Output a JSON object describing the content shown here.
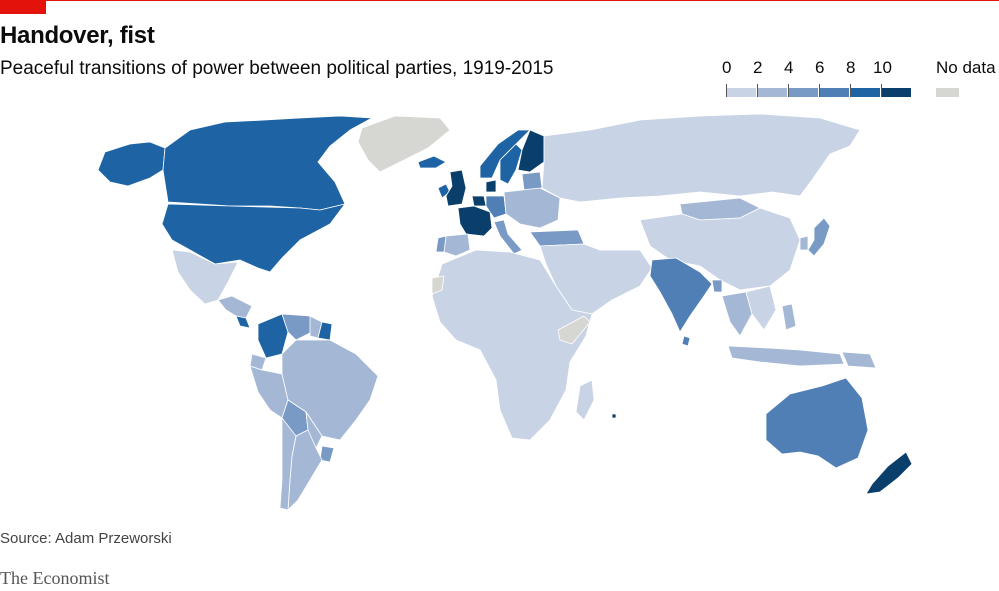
{
  "header": {
    "title": "Handover, fist",
    "subtitle": "Peaceful transitions of power between political parties, 1919-2015"
  },
  "legend": {
    "ticks": [
      "0",
      "2",
      "4",
      "6",
      "8",
      "10"
    ],
    "no_data_label": "No data"
  },
  "footer": {
    "source": "Source: Adam Przeworski",
    "brand": "The Economist"
  },
  "colors": {
    "accent": "#e3120b",
    "scale": [
      "#c9d3e6",
      "#a4b8d6",
      "#7a9ac6",
      "#4f7fb4",
      "#1e64a5",
      "#0b3f6b"
    ],
    "no_data": "#d6d7d3",
    "border": "#ffffff"
  },
  "map_data": {
    "metric": "Peaceful transitions of power between political parties",
    "bins": [
      {
        "label": "0-2",
        "color_index": 0
      },
      {
        "label": "2-4",
        "color_index": 1
      },
      {
        "label": "4-6",
        "color_index": 2
      },
      {
        "label": "6-8",
        "color_index": 3
      },
      {
        "label": "8-10",
        "color_index": 4
      },
      {
        "label": "10+",
        "color_index": 5
      }
    ],
    "regions": [
      {
        "name": "Canada",
        "bin": 4
      },
      {
        "name": "United States",
        "bin": 4
      },
      {
        "name": "Alaska",
        "bin": 4
      },
      {
        "name": "Greenland",
        "bin": "no_data"
      },
      {
        "name": "Iceland",
        "bin": 4
      },
      {
        "name": "Mexico",
        "bin": 0
      },
      {
        "name": "Central America",
        "bin": 1
      },
      {
        "name": "Costa Rica",
        "bin": 4
      },
      {
        "name": "Colombia",
        "bin": 4
      },
      {
        "name": "Venezuela",
        "bin": 2
      },
      {
        "name": "Guyana",
        "bin": 1
      },
      {
        "name": "Suriname",
        "bin": 4
      },
      {
        "name": "Ecuador",
        "bin": 1
      },
      {
        "name": "Peru",
        "bin": 1
      },
      {
        "name": "Brazil",
        "bin": 1
      },
      {
        "name": "Bolivia",
        "bin": 2
      },
      {
        "name": "Paraguay",
        "bin": 1
      },
      {
        "name": "Chile",
        "bin": 1
      },
      {
        "name": "Argentina",
        "bin": 1
      },
      {
        "name": "Uruguay",
        "bin": 2
      },
      {
        "name": "United Kingdom",
        "bin": 5
      },
      {
        "name": "Ireland",
        "bin": 4
      },
      {
        "name": "France",
        "bin": 5
      },
      {
        "name": "Benelux",
        "bin": 5
      },
      {
        "name": "Spain",
        "bin": 1
      },
      {
        "name": "Portugal",
        "bin": 2
      },
      {
        "name": "Germany",
        "bin": 3
      },
      {
        "name": "Italy",
        "bin": 2
      },
      {
        "name": "Norway",
        "bin": 4
      },
      {
        "name": "Sweden",
        "bin": 4
      },
      {
        "name": "Finland",
        "bin": 5
      },
      {
        "name": "Denmark",
        "bin": 5
      },
      {
        "name": "Baltics",
        "bin": 2
      },
      {
        "name": "Eastern Europe",
        "bin": 1
      },
      {
        "name": "Turkey",
        "bin": 2
      },
      {
        "name": "Russia",
        "bin": 0
      },
      {
        "name": "Middle East",
        "bin": 0
      },
      {
        "name": "Africa",
        "bin": 0
      },
      {
        "name": "Somalia",
        "bin": "no_data"
      },
      {
        "name": "Western Sahara",
        "bin": "no_data"
      },
      {
        "name": "Madagascar",
        "bin": 0
      },
      {
        "name": "Mauritius",
        "bin": 5
      },
      {
        "name": "India",
        "bin": 3
      },
      {
        "name": "Sri Lanka",
        "bin": 3
      },
      {
        "name": "Bangladesh",
        "bin": 2
      },
      {
        "name": "China",
        "bin": 0
      },
      {
        "name": "Mongolia",
        "bin": 1
      },
      {
        "name": "Japan",
        "bin": 2
      },
      {
        "name": "South Korea",
        "bin": 1
      },
      {
        "name": "Thailand",
        "bin": 1
      },
      {
        "name": "Philippines",
        "bin": 1
      },
      {
        "name": "Indonesia",
        "bin": 1
      },
      {
        "name": "Papua New Guinea",
        "bin": 1
      },
      {
        "name": "Australia",
        "bin": 3
      },
      {
        "name": "New Zealand",
        "bin": 5
      }
    ]
  }
}
